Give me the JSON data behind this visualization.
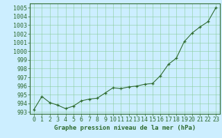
{
  "x": [
    0,
    1,
    2,
    3,
    4,
    5,
    6,
    7,
    8,
    9,
    10,
    11,
    12,
    13,
    14,
    15,
    16,
    17,
    18,
    19,
    20,
    21,
    22,
    23
  ],
  "y": [
    993.3,
    994.8,
    994.1,
    993.8,
    993.4,
    993.7,
    994.3,
    994.5,
    994.6,
    995.2,
    995.8,
    995.7,
    995.9,
    996.0,
    996.2,
    996.3,
    997.2,
    998.5,
    999.2,
    1001.1,
    1002.1,
    1002.8,
    1003.4,
    1005.0
  ],
  "line_color": "#2d6a2d",
  "marker_color": "#2d6a2d",
  "bg_color": "#cceeff",
  "grid_color": "#88cc99",
  "axis_color": "#2d6a2d",
  "border_color": "#2d6a2d",
  "xlabel": "Graphe pression niveau de la mer (hPa)",
  "xlabel_fontsize": 6.5,
  "tick_fontsize": 6.0,
  "ylim": [
    992.8,
    1005.5
  ],
  "yticks": [
    993,
    994,
    995,
    996,
    997,
    998,
    999,
    1000,
    1001,
    1002,
    1003,
    1004,
    1005
  ],
  "xlim": [
    -0.5,
    23.5
  ],
  "xticks": [
    0,
    1,
    2,
    3,
    4,
    5,
    6,
    7,
    8,
    9,
    10,
    11,
    12,
    13,
    14,
    15,
    16,
    17,
    18,
    19,
    20,
    21,
    22,
    23
  ]
}
